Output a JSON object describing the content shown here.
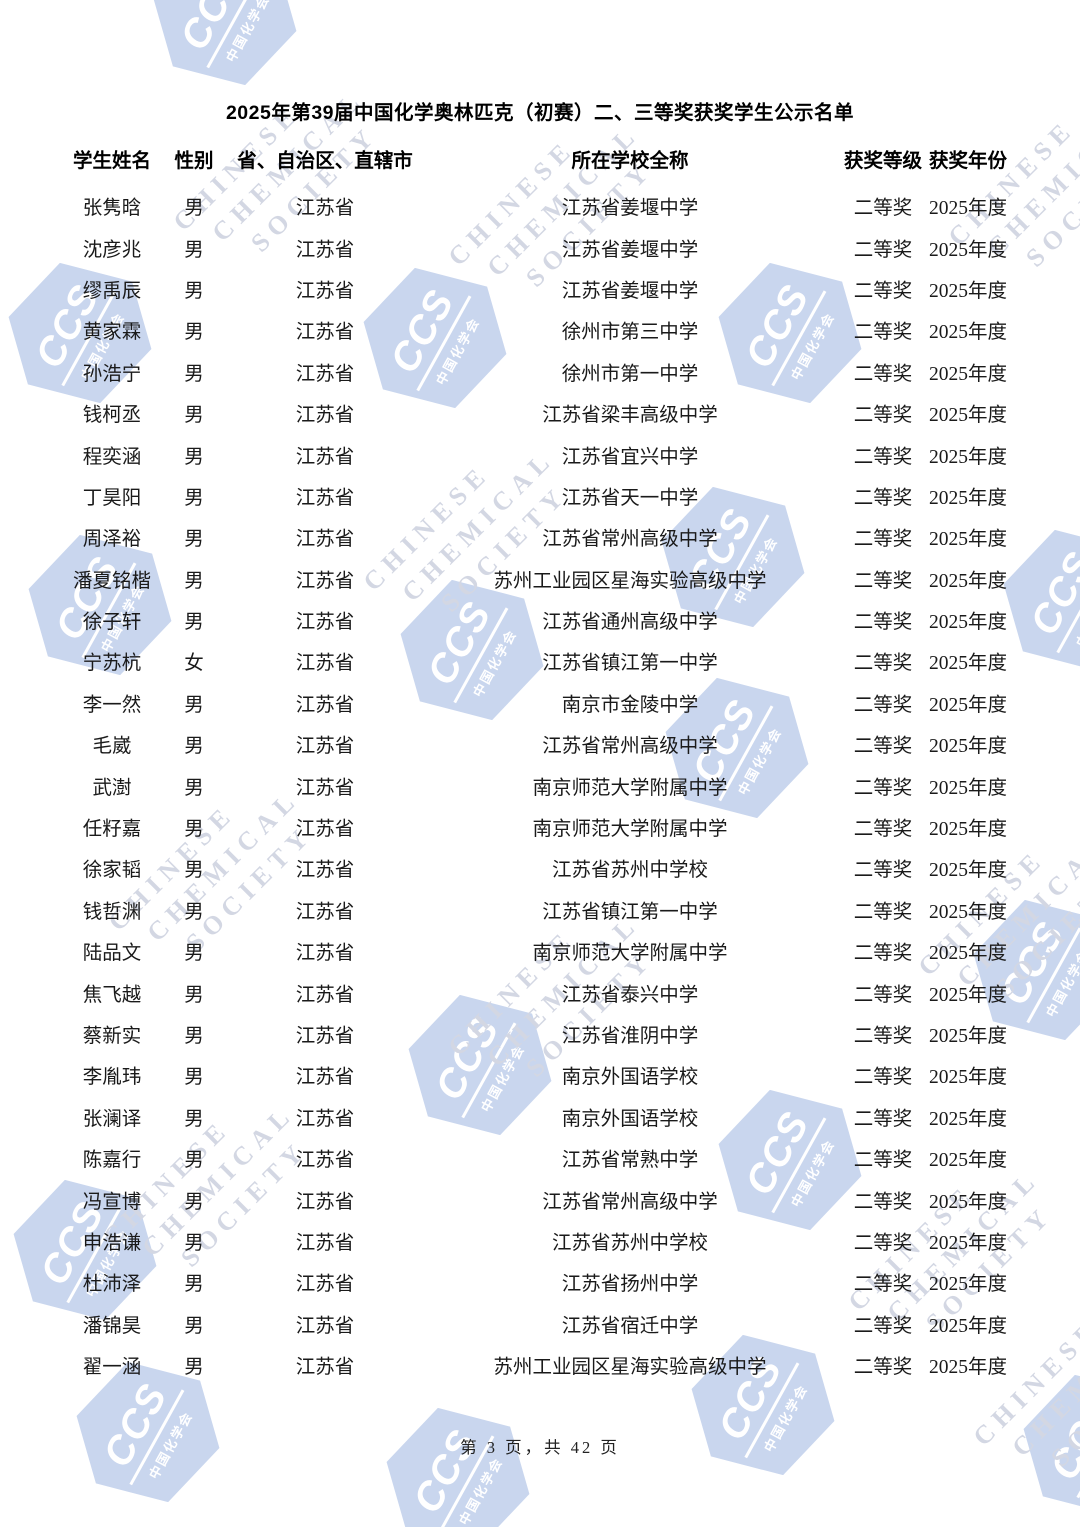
{
  "title": "2025年第39届中国化学奥林匹克（初赛）二、三等奖获奖学生公示名单",
  "table": {
    "columns": [
      "学生姓名",
      "性别",
      "省、自治区、直辖市",
      "所在学校全称",
      "获奖等级",
      "获奖年份"
    ],
    "rows": [
      {
        "name": "张隽晗",
        "gender": "男",
        "province": "江苏省",
        "school": "江苏省姜堰中学",
        "award": "二等奖",
        "year": "2025年度"
      },
      {
        "name": "沈彦兆",
        "gender": "男",
        "province": "江苏省",
        "school": "江苏省姜堰中学",
        "award": "二等奖",
        "year": "2025年度"
      },
      {
        "name": "缪禹辰",
        "gender": "男",
        "province": "江苏省",
        "school": "江苏省姜堰中学",
        "award": "二等奖",
        "year": "2025年度"
      },
      {
        "name": "黄家霖",
        "gender": "男",
        "province": "江苏省",
        "school": "徐州市第三中学",
        "award": "二等奖",
        "year": "2025年度"
      },
      {
        "name": "孙浩宁",
        "gender": "男",
        "province": "江苏省",
        "school": "徐州市第一中学",
        "award": "二等奖",
        "year": "2025年度"
      },
      {
        "name": "钱柯丞",
        "gender": "男",
        "province": "江苏省",
        "school": "江苏省梁丰高级中学",
        "award": "二等奖",
        "year": "2025年度"
      },
      {
        "name": "程奕涵",
        "gender": "男",
        "province": "江苏省",
        "school": "江苏省宜兴中学",
        "award": "二等奖",
        "year": "2025年度"
      },
      {
        "name": "丁昊阳",
        "gender": "男",
        "province": "江苏省",
        "school": "江苏省天一中学",
        "award": "二等奖",
        "year": "2025年度"
      },
      {
        "name": "周泽裕",
        "gender": "男",
        "province": "江苏省",
        "school": "江苏省常州高级中学",
        "award": "二等奖",
        "year": "2025年度"
      },
      {
        "name": "潘夏铭楷",
        "gender": "男",
        "province": "江苏省",
        "school": "苏州工业园区星海实验高级中学",
        "award": "二等奖",
        "year": "2025年度"
      },
      {
        "name": "徐子轩",
        "gender": "男",
        "province": "江苏省",
        "school": "江苏省通州高级中学",
        "award": "二等奖",
        "year": "2025年度"
      },
      {
        "name": "宁苏杭",
        "gender": "女",
        "province": "江苏省",
        "school": "江苏省镇江第一中学",
        "award": "二等奖",
        "year": "2025年度"
      },
      {
        "name": "李一然",
        "gender": "男",
        "province": "江苏省",
        "school": "南京市金陵中学",
        "award": "二等奖",
        "year": "2025年度"
      },
      {
        "name": "毛崴",
        "gender": "男",
        "province": "江苏省",
        "school": "江苏省常州高级中学",
        "award": "二等奖",
        "year": "2025年度"
      },
      {
        "name": "武澍",
        "gender": "男",
        "province": "江苏省",
        "school": "南京师范大学附属中学",
        "award": "二等奖",
        "year": "2025年度"
      },
      {
        "name": "任籽嘉",
        "gender": "男",
        "province": "江苏省",
        "school": "南京师范大学附属中学",
        "award": "二等奖",
        "year": "2025年度"
      },
      {
        "name": "徐家韬",
        "gender": "男",
        "province": "江苏省",
        "school": "江苏省苏州中学校",
        "award": "二等奖",
        "year": "2025年度"
      },
      {
        "name": "钱哲渊",
        "gender": "男",
        "province": "江苏省",
        "school": "江苏省镇江第一中学",
        "award": "二等奖",
        "year": "2025年度"
      },
      {
        "name": "陆品文",
        "gender": "男",
        "province": "江苏省",
        "school": "南京师范大学附属中学",
        "award": "二等奖",
        "year": "2025年度"
      },
      {
        "name": "焦飞越",
        "gender": "男",
        "province": "江苏省",
        "school": "江苏省泰兴中学",
        "award": "二等奖",
        "year": "2025年度"
      },
      {
        "name": "蔡新实",
        "gender": "男",
        "province": "江苏省",
        "school": "江苏省淮阴中学",
        "award": "二等奖",
        "year": "2025年度"
      },
      {
        "name": "李胤玮",
        "gender": "男",
        "province": "江苏省",
        "school": "南京外国语学校",
        "award": "二等奖",
        "year": "2025年度"
      },
      {
        "name": "张澜译",
        "gender": "男",
        "province": "江苏省",
        "school": "南京外国语学校",
        "award": "二等奖",
        "year": "2025年度"
      },
      {
        "name": "陈嘉行",
        "gender": "男",
        "province": "江苏省",
        "school": "江苏省常熟中学",
        "award": "二等奖",
        "year": "2025年度"
      },
      {
        "name": "冯宣博",
        "gender": "男",
        "province": "江苏省",
        "school": "江苏省常州高级中学",
        "award": "二等奖",
        "year": "2025年度"
      },
      {
        "name": "申浩谦",
        "gender": "男",
        "province": "江苏省",
        "school": "江苏省苏州中学校",
        "award": "二等奖",
        "year": "2025年度"
      },
      {
        "name": "杜沛泽",
        "gender": "男",
        "province": "江苏省",
        "school": "江苏省扬州中学",
        "award": "二等奖",
        "year": "2025年度"
      },
      {
        "name": "潘锦昊",
        "gender": "男",
        "province": "江苏省",
        "school": "江苏省宿迁中学",
        "award": "二等奖",
        "year": "2025年度"
      },
      {
        "name": "翟一涵",
        "gender": "男",
        "province": "江苏省",
        "school": "苏州工业园区星海实验高级中学",
        "award": "二等奖",
        "year": "2025年度"
      }
    ]
  },
  "footer": {
    "page_text": "第 3 页，共 42 页"
  },
  "watermark": {
    "logo_text": "CCS",
    "logo_subtext": "中国化学会",
    "words": [
      "CHINESE",
      "CHEMICAL",
      "SOCIETY"
    ],
    "hex_color": "#c9d6ee",
    "text_color": "#d3d7e3"
  }
}
